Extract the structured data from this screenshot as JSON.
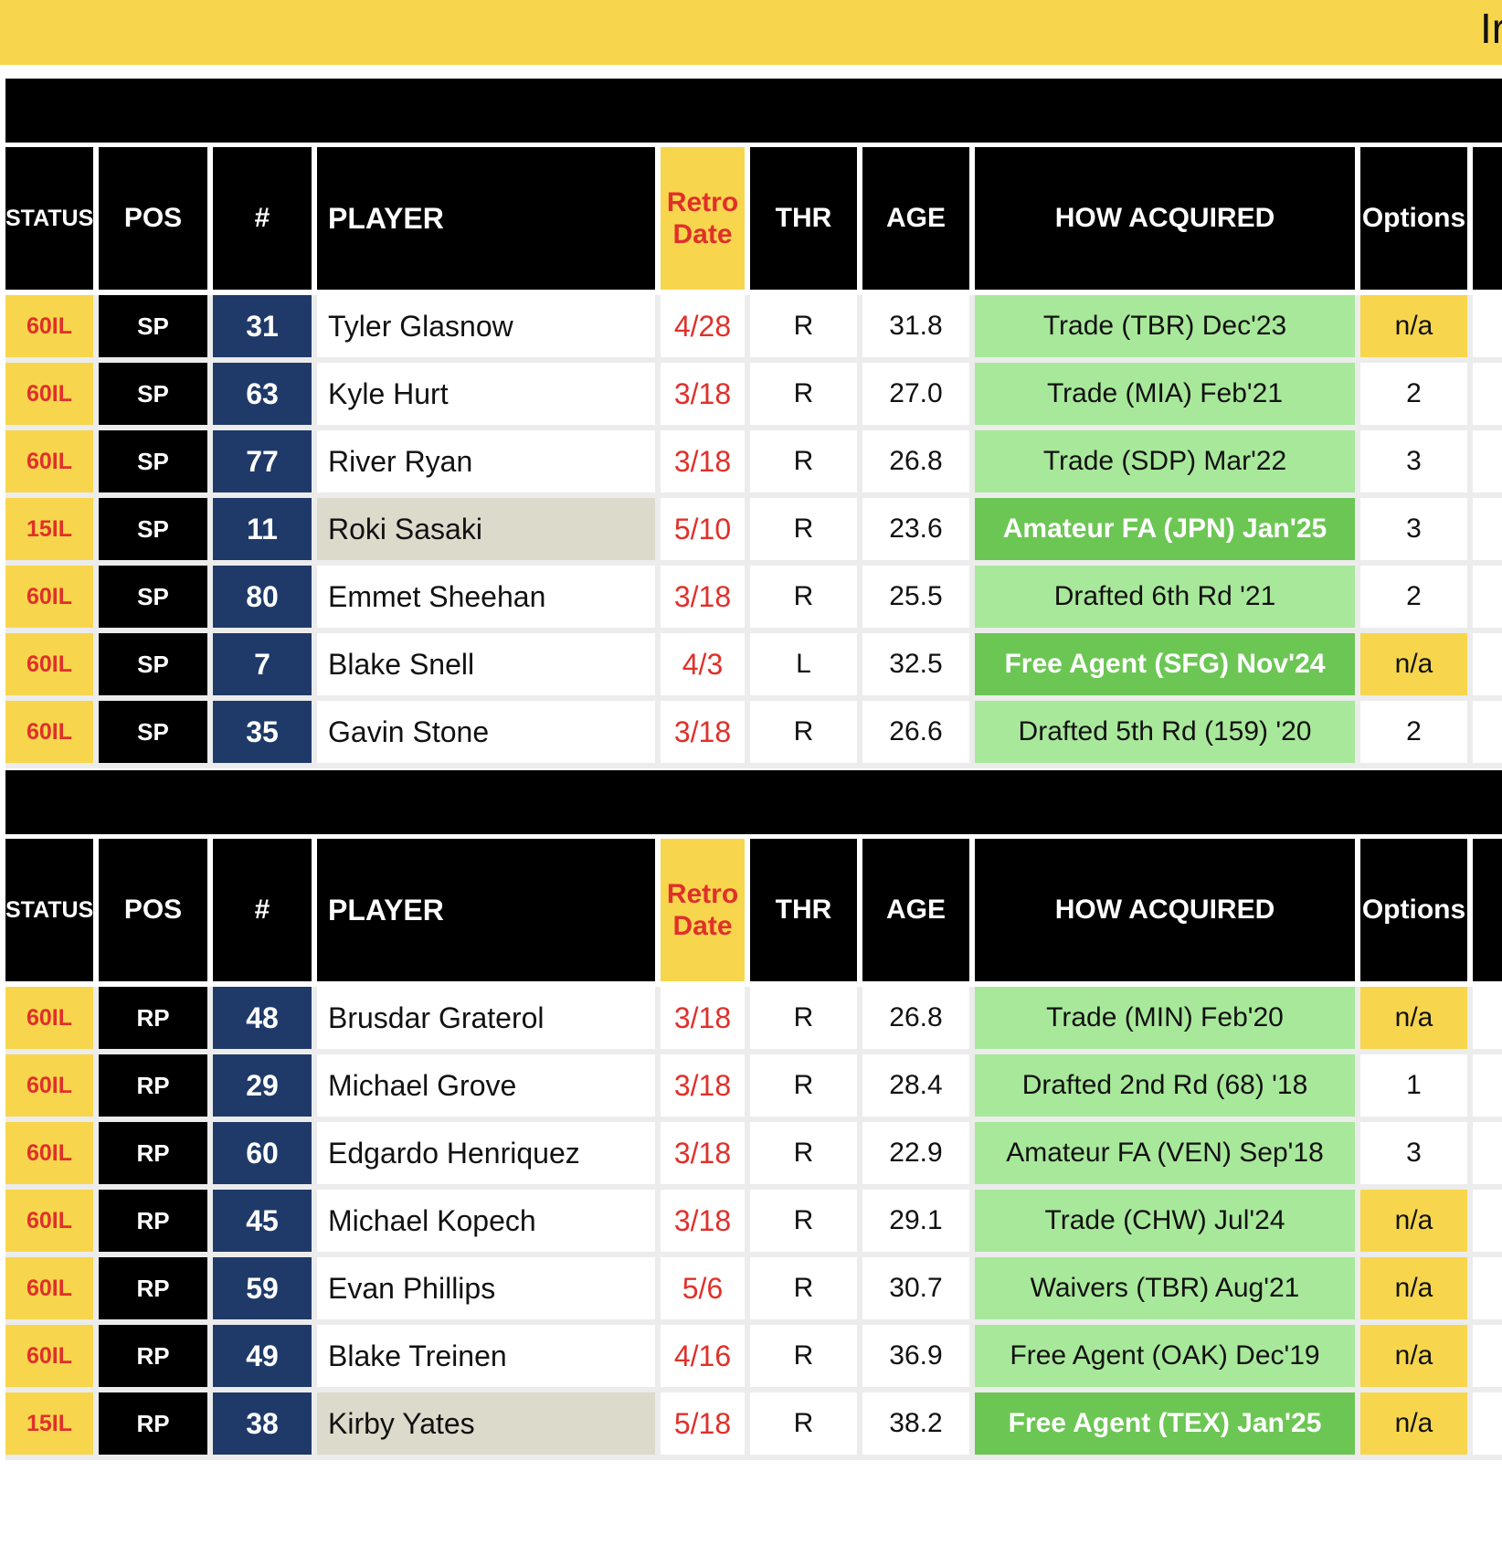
{
  "banner": {
    "text": "Ir"
  },
  "columns": {
    "status": "STATUS",
    "pos": "POS",
    "num": "#",
    "player": "PLAYER",
    "retro": "Retro Date",
    "thr": "THR",
    "age": "AGE",
    "how_acquired": "HOW ACQUIRED",
    "options": "Options"
  },
  "colors": {
    "banner_yellow": "#f7d64d",
    "retro_red": "#e0302a",
    "number_navy": "#1f3a68",
    "acquired_light_green": "#a8e89a",
    "acquired_dark_green": "#6cc654",
    "player_highlight": "#dcdacb"
  },
  "sections": [
    {
      "rows": [
        {
          "status": "60IL",
          "pos": "SP",
          "num": "31",
          "player": "Tyler Glasnow",
          "retro": "4/28",
          "thr": "R",
          "age": "31.8",
          "how_acquired": "Trade (TBR) Dec'23",
          "options": "n/a"
        },
        {
          "status": "60IL",
          "pos": "SP",
          "num": "63",
          "player": "Kyle Hurt",
          "retro": "3/18",
          "thr": "R",
          "age": "27.0",
          "how_acquired": "Trade (MIA) Feb'21",
          "options": "2"
        },
        {
          "status": "60IL",
          "pos": "SP",
          "num": "77",
          "player": "River Ryan",
          "retro": "3/18",
          "thr": "R",
          "age": "26.8",
          "how_acquired": "Trade (SDP) Mar'22",
          "options": "3"
        },
        {
          "status": "15IL",
          "pos": "SP",
          "num": "11",
          "player": "Roki Sasaki",
          "retro": "5/10",
          "thr": "R",
          "age": "23.6",
          "how_acquired": "Amateur FA (JPN) Jan'25",
          "options": "3"
        },
        {
          "status": "60IL",
          "pos": "SP",
          "num": "80",
          "player": "Emmet Sheehan",
          "retro": "3/18",
          "thr": "R",
          "age": "25.5",
          "how_acquired": "Drafted 6th Rd '21",
          "options": "2"
        },
        {
          "status": "60IL",
          "pos": "SP",
          "num": "7",
          "player": "Blake Snell",
          "retro": "4/3",
          "thr": "L",
          "age": "32.5",
          "how_acquired": "Free Agent (SFG) Nov'24",
          "options": "n/a"
        },
        {
          "status": "60IL",
          "pos": "SP",
          "num": "35",
          "player": "Gavin Stone",
          "retro": "3/18",
          "thr": "R",
          "age": "26.6",
          "how_acquired": "Drafted 5th Rd (159) '20",
          "options": "2"
        }
      ]
    },
    {
      "rows": [
        {
          "status": "60IL",
          "pos": "RP",
          "num": "48",
          "player": "Brusdar Graterol",
          "retro": "3/18",
          "thr": "R",
          "age": "26.8",
          "how_acquired": "Trade (MIN) Feb'20",
          "options": "n/a"
        },
        {
          "status": "60IL",
          "pos": "RP",
          "num": "29",
          "player": "Michael Grove",
          "retro": "3/18",
          "thr": "R",
          "age": "28.4",
          "how_acquired": "Drafted 2nd Rd (68) '18",
          "options": "1"
        },
        {
          "status": "60IL",
          "pos": "RP",
          "num": "60",
          "player": "Edgardo Henriquez",
          "retro": "3/18",
          "thr": "R",
          "age": "22.9",
          "how_acquired": "Amateur FA (VEN) Sep'18",
          "options": "3"
        },
        {
          "status": "60IL",
          "pos": "RP",
          "num": "45",
          "player": "Michael Kopech",
          "retro": "3/18",
          "thr": "R",
          "age": "29.1",
          "how_acquired": "Trade (CHW) Jul'24",
          "options": "n/a"
        },
        {
          "status": "60IL",
          "pos": "RP",
          "num": "59",
          "player": "Evan Phillips",
          "retro": "5/6",
          "thr": "R",
          "age": "30.7",
          "how_acquired": "Waivers (TBR) Aug'21",
          "options": "n/a"
        },
        {
          "status": "60IL",
          "pos": "RP",
          "num": "49",
          "player": "Blake Treinen",
          "retro": "4/16",
          "thr": "R",
          "age": "36.9",
          "how_acquired": "Free Agent (OAK) Dec'19",
          "options": "n/a"
        },
        {
          "status": "15IL",
          "pos": "RP",
          "num": "38",
          "player": "Kirby Yates",
          "retro": "5/18",
          "thr": "R",
          "age": "38.2",
          "how_acquired": "Free Agent (TEX) Jan'25",
          "options": "n/a"
        }
      ]
    }
  ]
}
